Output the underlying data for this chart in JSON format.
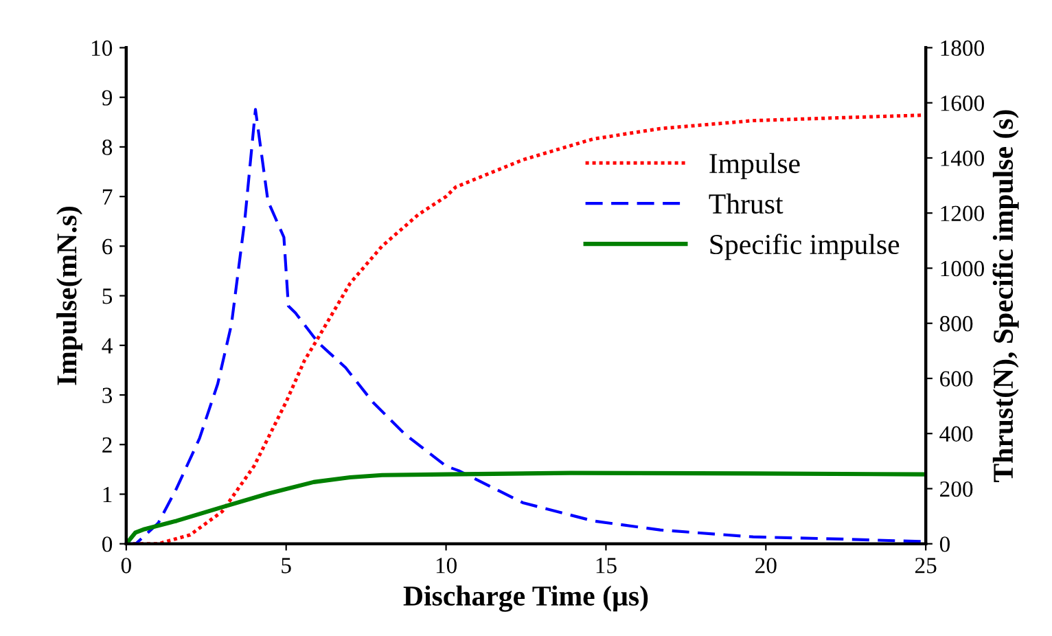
{
  "chart_data": {
    "type": "line",
    "xlabel": "Discharge Time (µs)",
    "ylabel": "Impulse(mN.s)",
    "y2label": "Thrust(N), Specific impulse (s)",
    "xlim": [
      0,
      25
    ],
    "xticks": [
      0,
      5,
      10,
      15,
      20,
      25
    ],
    "ylim": [
      0,
      10
    ],
    "yticks": [
      0,
      1,
      2,
      3,
      4,
      5,
      6,
      7,
      8,
      9,
      10
    ],
    "y2lim": [
      0,
      1800
    ],
    "y2ticks": [
      0,
      200,
      400,
      600,
      800,
      1000,
      1200,
      1400,
      1600,
      1800
    ],
    "legend": "right",
    "grid": false,
    "series": [
      {
        "name": "Impulse",
        "color": "#ff0000",
        "line_style": "dotted",
        "x": [
          0,
          1,
          2,
          3,
          4,
          5,
          5.57,
          6,
          7,
          8,
          9.14,
          10,
          10.3,
          12.4,
          14.6,
          16.7,
          19.6,
          22.4,
          24.9
        ],
        "values": [
          0,
          0,
          0.18,
          0.65,
          1.57,
          2.86,
          3.69,
          4.15,
          5.25,
          6.0,
          6.64,
          7.0,
          7.19,
          7.74,
          8.16,
          8.37,
          8.53,
          8.59,
          8.64
        ]
      },
      {
        "name": "Thrust",
        "color": "#0000ff",
        "line_style": "dashed",
        "axis": "y2",
        "x": [
          0,
          0.3,
          1,
          1.57,
          2.29,
          2.86,
          3.29,
          3.71,
          4.04,
          4.43,
          4.93,
          5.07,
          5.29,
          6,
          6.86,
          7.71,
          8.71,
          10,
          10.4,
          12.4,
          14.6,
          16.7,
          19.6,
          22.4,
          24.9
        ],
        "values": [
          0,
          0,
          75,
          200,
          382,
          580,
          796,
          1178,
          1576,
          1244,
          1112,
          863,
          838,
          730,
          639,
          514,
          398,
          282,
          265,
          149,
          83,
          50,
          25,
          17,
          8
        ]
      },
      {
        "name": "Specific impulse",
        "color": "#008000",
        "line_style": "solid",
        "axis": "y2",
        "x": [
          0,
          0.29,
          0.57,
          1.57,
          3,
          4.43,
          5.86,
          7,
          8,
          10,
          13.9,
          19.6,
          24.9
        ],
        "values": [
          0,
          41,
          53,
          83,
          133,
          182,
          224,
          241,
          249,
          252,
          257,
          255,
          252
        ]
      }
    ]
  }
}
